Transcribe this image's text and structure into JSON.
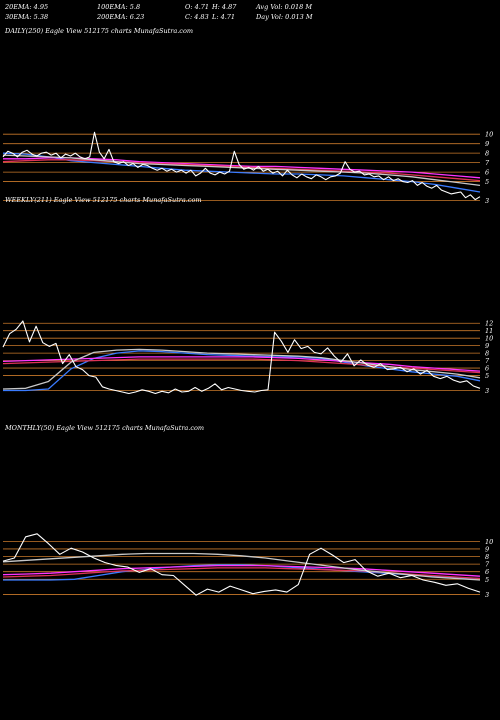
{
  "header": {
    "rows": [
      [
        "20EMA: 4.95",
        "100EMA: 5.8",
        "O: 4.71",
        "H: 4.87",
        "Avg Vol: 0.018  M"
      ],
      [
        "30EMA: 5.38",
        "200EMA: 6.23",
        "C: 4.83",
        "L: 4.71",
        "Day Vol: 0.013 M"
      ]
    ]
  },
  "colors": {
    "background": "#000000",
    "price": "#ffffff",
    "ema_blue": "#3a7bff",
    "ema_magenta": "#ff33ff",
    "ema_red": "#dd3355",
    "ema_white_thin": "#c8c8c8",
    "level_line": "#c8782a"
  },
  "chart_data": [
    {
      "type": "line",
      "title": "DAILY(250) Eagle  View  512175 charts MunafaSutra.com",
      "ylim": [
        2,
        11.5
      ],
      "yticks": [
        10,
        9,
        8,
        7,
        6,
        5,
        3
      ],
      "level_lines": [
        10,
        9,
        8,
        7,
        6,
        5,
        3
      ],
      "series": [
        {
          "role": "price",
          "values": [
            7.6,
            8.2,
            8.0,
            7.6,
            8.1,
            8.3,
            7.9,
            7.7,
            8.0,
            8.1,
            7.8,
            8.0,
            7.5,
            7.9,
            7.7,
            8.0,
            7.6,
            7.4,
            7.6,
            10.2,
            8.1,
            7.4,
            8.4,
            7.1,
            6.9,
            7.1,
            6.7,
            6.9,
            6.5,
            6.8,
            6.7,
            6.4,
            6.2,
            6.4,
            6.1,
            6.3,
            6.0,
            6.2,
            5.9,
            6.2,
            5.6,
            5.9,
            6.4,
            5.9,
            5.7,
            6.0,
            5.8,
            6.1,
            8.2,
            6.8,
            6.3,
            6.5,
            6.2,
            6.6,
            6.1,
            6.3,
            5.9,
            6.1,
            5.6,
            6.2,
            5.7,
            5.4,
            5.8,
            5.5,
            5.3,
            5.7,
            5.5,
            5.2,
            5.5,
            5.6,
            5.9,
            7.1,
            6.3,
            6.0,
            6.1,
            5.7,
            5.8,
            5.5,
            5.6,
            5.2,
            5.5,
            5.1,
            5.3,
            5.0,
            4.9,
            5.1,
            4.6,
            4.9,
            4.5,
            4.3,
            4.6,
            4.1,
            3.9,
            3.7,
            3.8,
            3.9,
            3.3,
            3.6,
            3.1,
            3.4
          ]
        },
        {
          "role": "ema",
          "color": "#3a7bff",
          "values": [
            8.0,
            7.9,
            7.6,
            7.2,
            7.0,
            6.8,
            6.6,
            6.4,
            6.2,
            6.1,
            6.0,
            5.9,
            5.8,
            5.8,
            5.7,
            5.6,
            5.4,
            5.2,
            5.0,
            4.7,
            4.3,
            3.9
          ]
        },
        {
          "role": "ema",
          "color": "#ff33ff",
          "values": [
            7.4,
            7.4,
            7.5,
            7.5,
            7.4,
            7.3,
            7.1,
            7.0,
            6.9,
            6.8,
            6.7,
            6.6,
            6.6,
            6.5,
            6.4,
            6.3,
            6.2,
            6.1,
            6.0,
            5.8,
            5.6,
            5.4
          ]
        },
        {
          "role": "ema",
          "color": "#dd3355",
          "values": [
            7.1,
            7.2,
            7.3,
            7.3,
            7.2,
            7.1,
            7.0,
            6.9,
            6.8,
            6.7,
            6.6,
            6.5,
            6.4,
            6.3,
            6.2,
            6.1,
            6.0,
            5.9,
            5.7,
            5.5,
            5.3,
            5.1
          ]
        },
        {
          "role": "ema",
          "color": "#c8c8c8",
          "values": [
            7.8,
            7.7,
            7.6,
            7.5,
            7.3,
            7.1,
            6.9,
            6.8,
            6.7,
            6.6,
            6.5,
            6.4,
            6.3,
            6.2,
            6.1,
            6.0,
            5.9,
            5.7,
            5.5,
            5.2,
            4.9,
            4.6
          ]
        }
      ]
    },
    {
      "type": "line",
      "title": "WEEKLY(211) Eagle  View  512175 charts MunafaSutra.com",
      "ylim": [
        2,
        13.5
      ],
      "yticks": [
        12,
        11,
        10,
        9,
        8,
        7,
        6,
        5,
        3
      ],
      "level_lines": [
        12,
        11,
        10,
        9,
        8,
        7,
        6,
        5,
        3
      ],
      "series": [
        {
          "role": "price",
          "values": [
            8.8,
            10.6,
            11.2,
            12.3,
            9.5,
            11.6,
            9.4,
            8.9,
            9.3,
            6.6,
            7.8,
            6.2,
            5.8,
            5.0,
            4.8,
            3.5,
            3.2,
            3.0,
            2.8,
            2.6,
            2.8,
            3.1,
            2.9,
            2.6,
            2.9,
            2.7,
            3.2,
            2.8,
            2.9,
            3.4,
            2.9,
            3.3,
            3.9,
            3.1,
            3.4,
            3.2,
            3.0,
            2.9,
            2.8,
            3.0,
            3.1,
            10.8,
            9.6,
            8.1,
            9.8,
            8.6,
            8.9,
            8.1,
            7.9,
            8.7,
            7.6,
            6.8,
            7.9,
            6.3,
            7.1,
            6.4,
            6.1,
            6.6,
            5.8,
            5.9,
            6.1,
            5.5,
            5.9,
            5.2,
            5.7,
            4.9,
            4.6,
            4.9,
            4.4,
            4.1,
            4.3,
            3.6,
            3.3
          ]
        },
        {
          "role": "ema",
          "color": "#3a7bff",
          "values": [
            3.0,
            3.0,
            3.2,
            5.9,
            7.3,
            8.0,
            8.3,
            8.2,
            8.0,
            7.8,
            7.7,
            7.6,
            7.5,
            7.5,
            7.3,
            6.8,
            6.3,
            5.9,
            5.5,
            5.2,
            4.9,
            4.3
          ]
        },
        {
          "role": "ema",
          "color": "#ff33ff",
          "values": [
            6.9,
            7.0,
            7.1,
            7.2,
            7.3,
            7.4,
            7.5,
            7.5,
            7.5,
            7.5,
            7.5,
            7.5,
            7.4,
            7.3,
            7.1,
            6.9,
            6.7,
            6.5,
            6.2,
            6.0,
            5.8,
            5.6
          ]
        },
        {
          "role": "ema",
          "color": "#dd3355",
          "values": [
            6.6,
            6.7,
            6.8,
            6.9,
            7.0,
            7.1,
            7.2,
            7.2,
            7.2,
            7.2,
            7.2,
            7.2,
            7.1,
            7.0,
            6.8,
            6.6,
            6.4,
            6.2,
            6.0,
            5.8,
            5.6,
            5.4
          ]
        },
        {
          "role": "ema",
          "color": "#c8c8c8",
          "values": [
            3.2,
            3.3,
            4.2,
            6.8,
            8.1,
            8.4,
            8.5,
            8.4,
            8.2,
            8.0,
            7.9,
            7.8,
            7.7,
            7.6,
            7.4,
            7.0,
            6.6,
            6.2,
            5.8,
            5.5,
            5.2,
            4.7
          ]
        }
      ]
    },
    {
      "type": "line",
      "title": "MONTHLY(50) Eagle  View  512175 charts MunafaSutra.com",
      "ylim": [
        2,
        11.5
      ],
      "yticks": [
        10,
        9,
        8,
        7,
        6,
        5,
        3
      ],
      "level_lines": [
        10,
        9,
        8,
        7,
        6,
        5,
        3
      ],
      "series": [
        {
          "role": "price",
          "values": [
            7.4,
            7.8,
            10.6,
            11.0,
            9.7,
            8.3,
            9.1,
            8.6,
            7.8,
            7.2,
            6.8,
            6.6,
            5.9,
            6.4,
            5.6,
            5.5,
            4.2,
            2.9,
            3.7,
            3.3,
            4.1,
            3.6,
            3.1,
            3.4,
            3.6,
            3.3,
            4.3,
            8.3,
            9.1,
            8.2,
            7.2,
            7.6,
            6.1,
            5.4,
            5.8,
            5.2,
            5.5,
            4.9,
            4.6,
            4.2,
            4.4,
            3.8,
            3.3
          ]
        },
        {
          "role": "ema",
          "color": "#3a7bff",
          "values": [
            4.9,
            4.9,
            4.9,
            5.0,
            5.5,
            6.0,
            6.3,
            6.6,
            6.8,
            6.9,
            6.9,
            6.8,
            6.6,
            6.4,
            6.2,
            6.0,
            5.8,
            5.6,
            5.4,
            5.2,
            5.1
          ]
        },
        {
          "role": "ema",
          "color": "#ff33ff",
          "values": [
            5.6,
            5.7,
            5.8,
            6.0,
            6.2,
            6.4,
            6.5,
            6.6,
            6.7,
            6.8,
            6.8,
            6.8,
            6.7,
            6.6,
            6.5,
            6.4,
            6.2,
            6.0,
            5.8,
            5.6,
            5.4
          ]
        },
        {
          "role": "ema",
          "color": "#dd3355",
          "values": [
            5.3,
            5.4,
            5.5,
            5.7,
            5.9,
            6.1,
            6.2,
            6.3,
            6.4,
            6.5,
            6.5,
            6.5,
            6.4,
            6.3,
            6.2,
            6.1,
            5.9,
            5.7,
            5.5,
            5.3,
            5.1
          ]
        },
        {
          "role": "ema",
          "color": "#c8c8c8",
          "values": [
            7.3,
            7.5,
            7.7,
            7.9,
            8.1,
            8.3,
            8.4,
            8.4,
            8.4,
            8.3,
            8.1,
            7.8,
            7.4,
            7.0,
            6.6,
            6.2,
            5.9,
            5.6,
            5.3,
            5.1,
            4.9
          ]
        }
      ]
    }
  ]
}
